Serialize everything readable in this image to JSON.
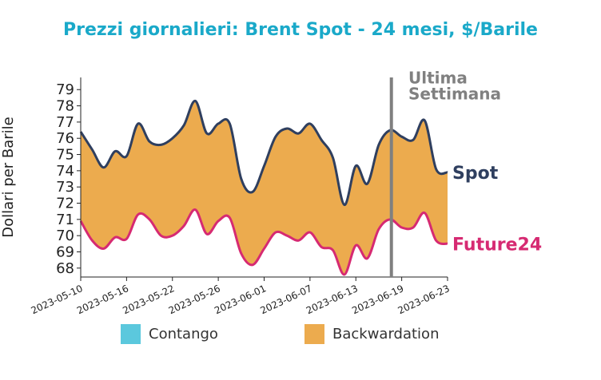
{
  "chart_data": {
    "type": "line",
    "title": "Prezzi giornalieri: Brent Spot - 24 mesi, $/Barile",
    "y_label": "Dollari per Barile",
    "categories": [
      "2023-05-10",
      null,
      null,
      null,
      "2023-05-16",
      null,
      null,
      null,
      "2023-05-22",
      null,
      null,
      null,
      "2023-05-26",
      null,
      null,
      null,
      "2023-06-01",
      null,
      null,
      null,
      "2023-06-07",
      null,
      null,
      null,
      "2023-06-13",
      null,
      null,
      null,
      "2023-06-19",
      null,
      null,
      null,
      "2023-06-23"
    ],
    "series": [
      {
        "name": "Spot",
        "color": "#2f3f5f",
        "values": [
          76.4,
          75.3,
          74.2,
          75.2,
          74.9,
          76.9,
          75.8,
          75.6,
          76.0,
          76.8,
          78.3,
          76.3,
          76.9,
          76.9,
          73.5,
          72.7,
          74.3,
          76.1,
          76.6,
          76.3,
          76.9,
          75.9,
          74.8,
          71.9,
          74.3,
          73.2,
          75.6,
          76.5,
          76.1,
          75.9,
          77.1,
          74.1,
          73.9
        ]
      },
      {
        "name": "Future24",
        "color": "#d62a72",
        "values": [
          70.9,
          69.7,
          69.2,
          69.9,
          69.8,
          71.3,
          71.0,
          70.0,
          70.0,
          70.6,
          71.6,
          70.1,
          70.9,
          71.1,
          68.9,
          68.2,
          69.2,
          70.2,
          70.0,
          69.7,
          70.2,
          69.3,
          69.1,
          67.6,
          69.4,
          68.6,
          70.4,
          71.0,
          70.5,
          70.5,
          71.4,
          69.7,
          69.5
        ]
      }
    ],
    "legend": [
      {
        "name": "Contango",
        "color": "#5bc8dd"
      },
      {
        "name": "Backwardation",
        "color": "#ecab4e"
      }
    ],
    "annotation": {
      "lines": [
        "Ultima",
        "Settimana"
      ],
      "x": 27.1,
      "color": "#808080"
    },
    "ylim": [
      67.45,
      79.75
    ],
    "yticks": [
      68,
      69,
      70,
      71,
      72,
      73,
      74,
      75,
      76,
      77,
      78,
      79
    ]
  }
}
